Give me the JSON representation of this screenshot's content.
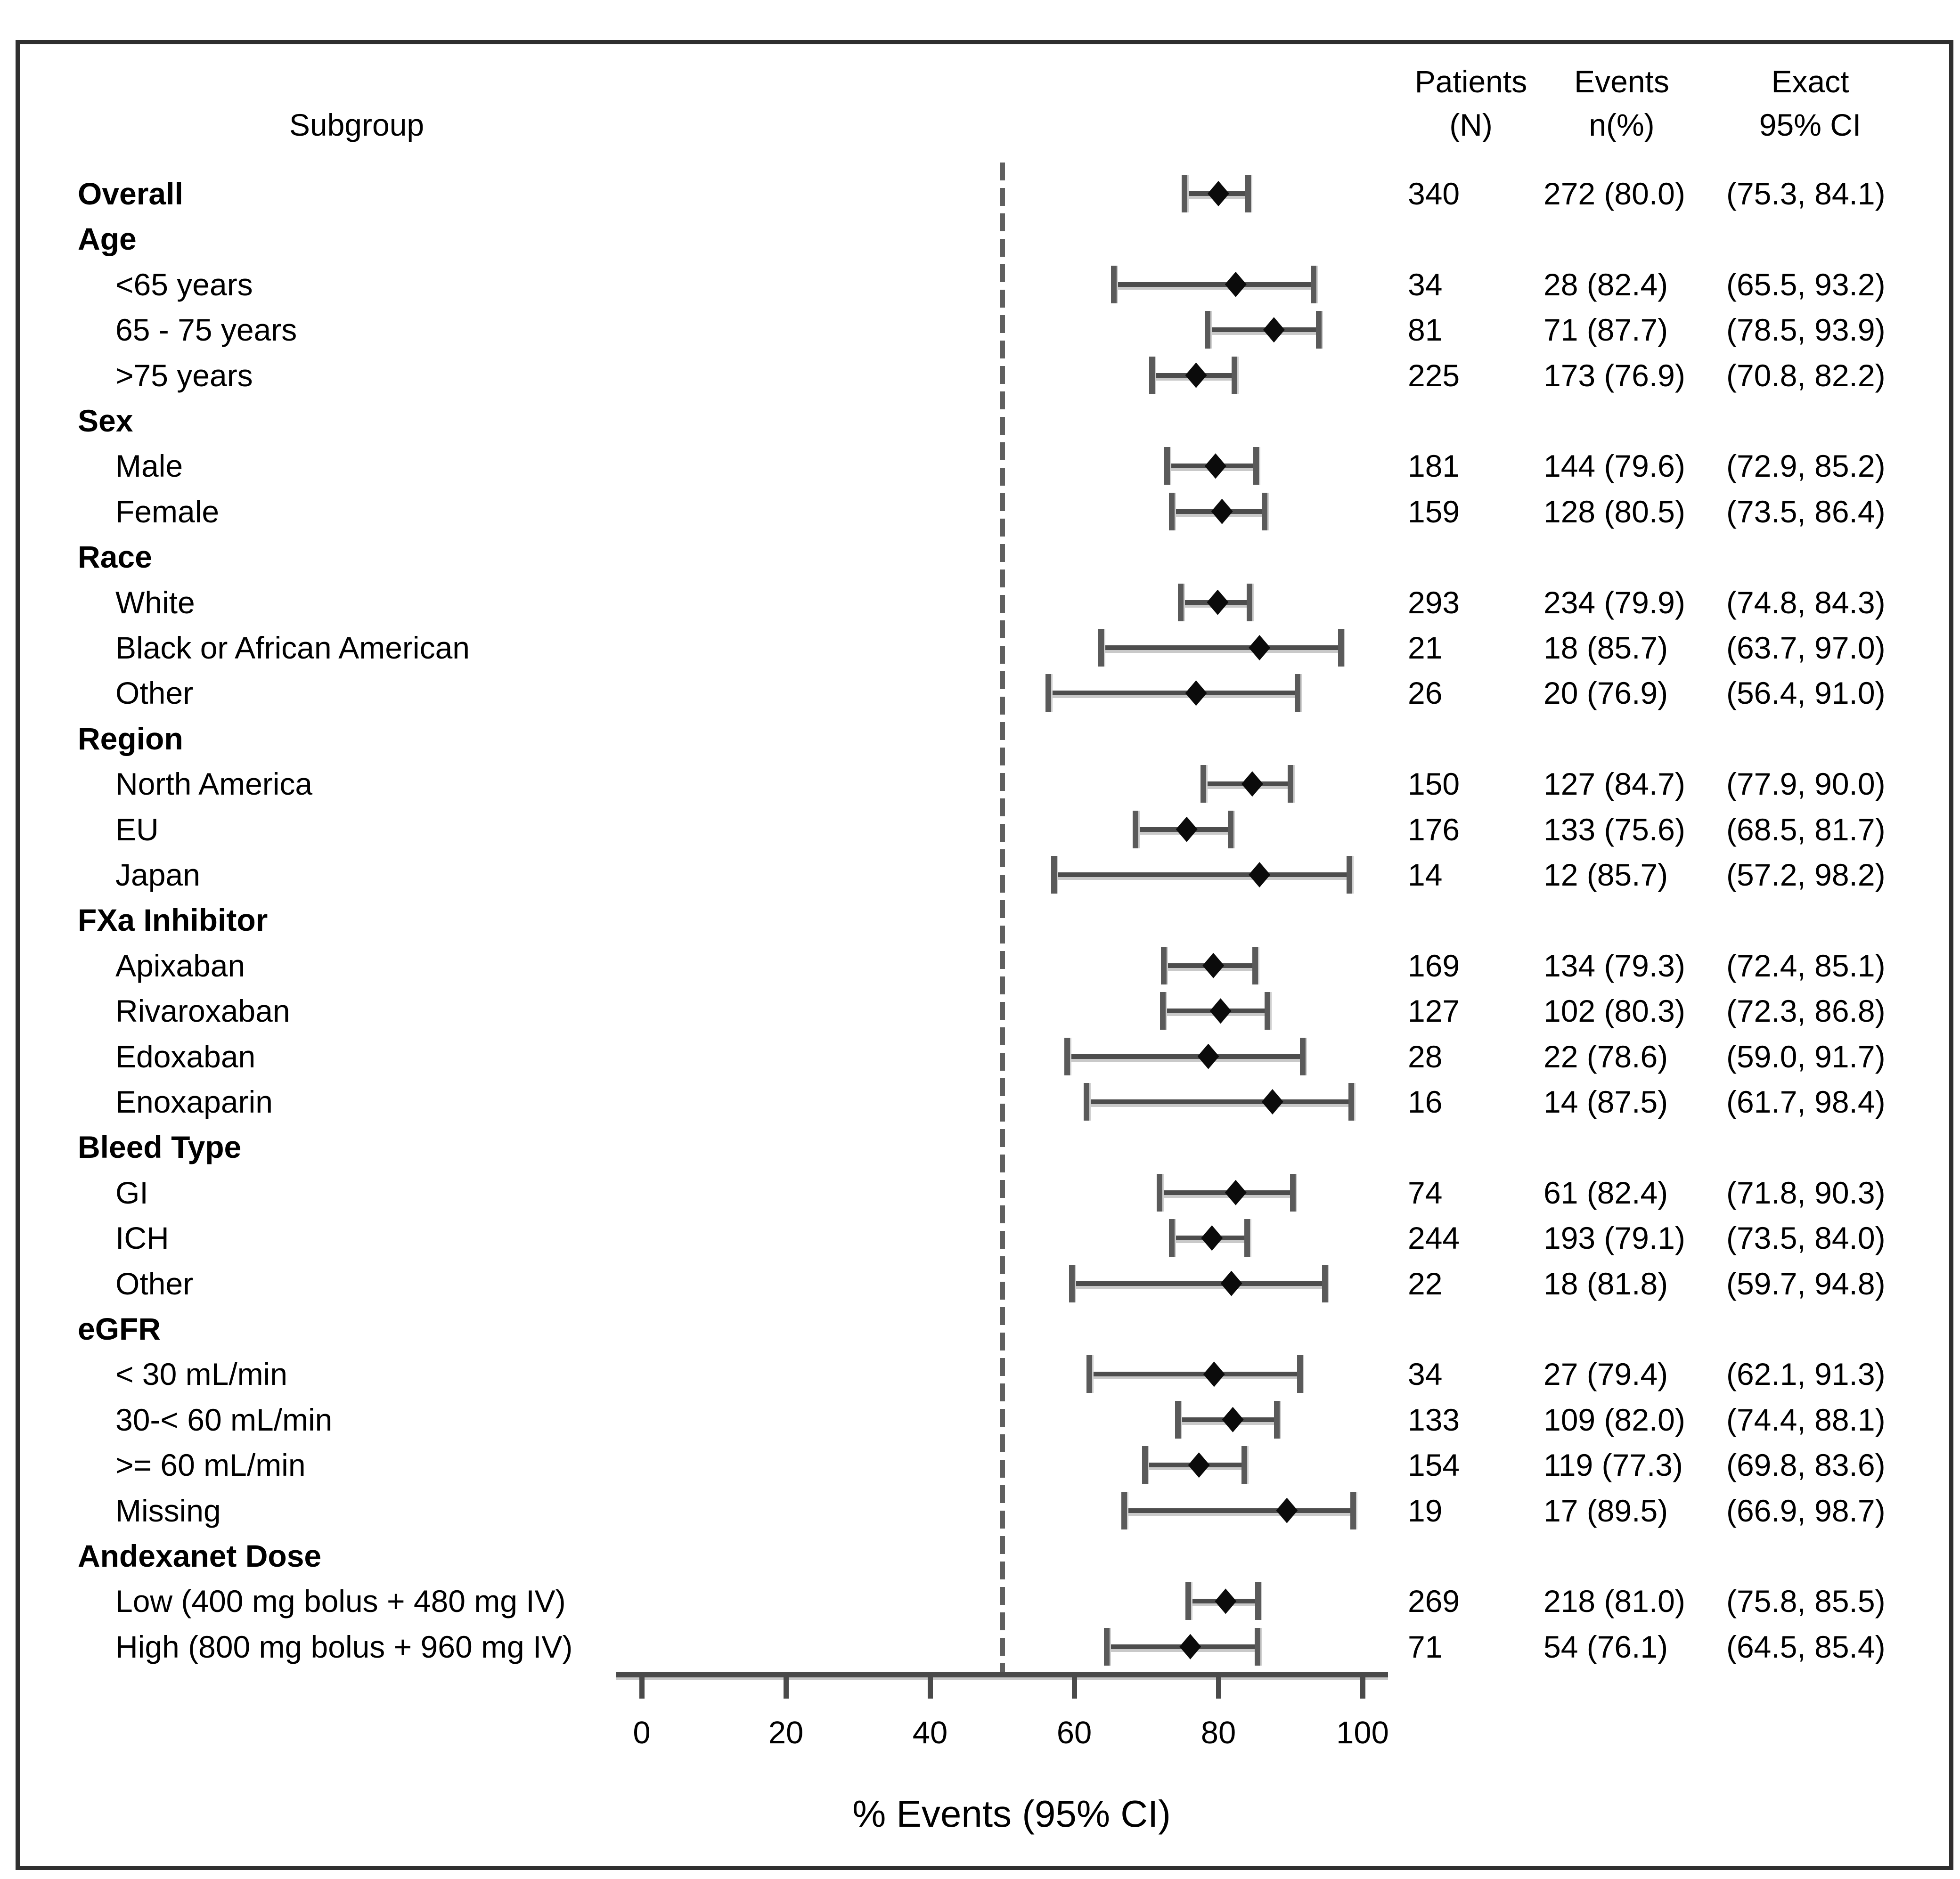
{
  "header": {
    "subgroup": "Subgroup",
    "patients": [
      "Patients",
      "(N)"
    ],
    "events": [
      "Events",
      "n(%)"
    ],
    "ci": [
      "Exact",
      "95% CI"
    ]
  },
  "colors": {
    "text": "#000000",
    "marker": "#0b0b0b",
    "line": "#4d4d4d",
    "frame": "#2f2f2f"
  },
  "chart_data": {
    "type": "forest",
    "xlabel": "% Events (95% CI)",
    "xlim": [
      0,
      100
    ],
    "xticks": [
      0,
      20,
      40,
      60,
      80,
      100
    ],
    "reference_line_x": 50,
    "legend_position": "none",
    "grid": false,
    "rows": [
      {
        "label": "Overall",
        "level": "overall",
        "patients": 340,
        "events": "272 (80.0)",
        "ci": "(75.3, 84.1)",
        "estimate": 80.0,
        "lower": 75.3,
        "upper": 84.1
      },
      {
        "label": "Age",
        "level": "group"
      },
      {
        "label": "<65 years",
        "level": "item",
        "patients": 34,
        "events": "28 (82.4)",
        "ci": "(65.5, 93.2)",
        "estimate": 82.4,
        "lower": 65.5,
        "upper": 93.2
      },
      {
        "label": "65 - 75 years",
        "level": "item",
        "patients": 81,
        "events": "71 (87.7)",
        "ci": "(78.5, 93.9)",
        "estimate": 87.7,
        "lower": 78.5,
        "upper": 93.9
      },
      {
        "label": ">75 years",
        "level": "item",
        "patients": 225,
        "events": "173 (76.9)",
        "ci": "(70.8, 82.2)",
        "estimate": 76.9,
        "lower": 70.8,
        "upper": 82.2
      },
      {
        "label": "Sex",
        "level": "group"
      },
      {
        "label": "Male",
        "level": "item",
        "patients": 181,
        "events": "144 (79.6)",
        "ci": "(72.9, 85.2)",
        "estimate": 79.6,
        "lower": 72.9,
        "upper": 85.2
      },
      {
        "label": "Female",
        "level": "item",
        "patients": 159,
        "events": "128 (80.5)",
        "ci": "(73.5, 86.4)",
        "estimate": 80.5,
        "lower": 73.5,
        "upper": 86.4
      },
      {
        "label": "Race",
        "level": "group"
      },
      {
        "label": "White",
        "level": "item",
        "patients": 293,
        "events": "234 (79.9)",
        "ci": "(74.8, 84.3)",
        "estimate": 79.9,
        "lower": 74.8,
        "upper": 84.3
      },
      {
        "label": "Black or African American",
        "level": "item",
        "patients": 21,
        "events": "18 (85.7)",
        "ci": "(63.7, 97.0)",
        "estimate": 85.7,
        "lower": 63.7,
        "upper": 97.0
      },
      {
        "label": "Other",
        "level": "item",
        "patients": 26,
        "events": "20 (76.9)",
        "ci": "(56.4, 91.0)",
        "estimate": 76.9,
        "lower": 56.4,
        "upper": 91.0
      },
      {
        "label": "Region",
        "level": "group"
      },
      {
        "label": "North America",
        "level": "item",
        "patients": 150,
        "events": "127 (84.7)",
        "ci": "(77.9, 90.0)",
        "estimate": 84.7,
        "lower": 77.9,
        "upper": 90.0
      },
      {
        "label": "EU",
        "level": "item",
        "patients": 176,
        "events": "133 (75.6)",
        "ci": "(68.5, 81.7)",
        "estimate": 75.6,
        "lower": 68.5,
        "upper": 81.7
      },
      {
        "label": "Japan",
        "level": "item",
        "patients": 14,
        "events": "12 (85.7)",
        "ci": "(57.2, 98.2)",
        "estimate": 85.7,
        "lower": 57.2,
        "upper": 98.2
      },
      {
        "label": "FXa Inhibitor",
        "level": "group"
      },
      {
        "label": "Apixaban",
        "level": "item",
        "patients": 169,
        "events": "134 (79.3)",
        "ci": "(72.4, 85.1)",
        "estimate": 79.3,
        "lower": 72.4,
        "upper": 85.1
      },
      {
        "label": "Rivaroxaban",
        "level": "item",
        "patients": 127,
        "events": "102 (80.3)",
        "ci": "(72.3, 86.8)",
        "estimate": 80.3,
        "lower": 72.3,
        "upper": 86.8
      },
      {
        "label": "Edoxaban",
        "level": "item",
        "patients": 28,
        "events": "22 (78.6)",
        "ci": "(59.0, 91.7)",
        "estimate": 78.6,
        "lower": 59.0,
        "upper": 91.7
      },
      {
        "label": "Enoxaparin",
        "level": "item",
        "patients": 16,
        "events": "14 (87.5)",
        "ci": "(61.7, 98.4)",
        "estimate": 87.5,
        "lower": 61.7,
        "upper": 98.4
      },
      {
        "label": "Bleed Type",
        "level": "group"
      },
      {
        "label": "GI",
        "level": "item",
        "patients": 74,
        "events": "61 (82.4)",
        "ci": "(71.8, 90.3)",
        "estimate": 82.4,
        "lower": 71.8,
        "upper": 90.3
      },
      {
        "label": "ICH",
        "level": "item",
        "patients": 244,
        "events": "193 (79.1)",
        "ci": "(73.5, 84.0)",
        "estimate": 79.1,
        "lower": 73.5,
        "upper": 84.0
      },
      {
        "label": "Other",
        "level": "item",
        "patients": 22,
        "events": "18 (81.8)",
        "ci": "(59.7, 94.8)",
        "estimate": 81.8,
        "lower": 59.7,
        "upper": 94.8
      },
      {
        "label": "eGFR",
        "level": "group"
      },
      {
        "label": "< 30 mL/min",
        "level": "item",
        "patients": 34,
        "events": "27 (79.4)",
        "ci": "(62.1, 91.3)",
        "estimate": 79.4,
        "lower": 62.1,
        "upper": 91.3
      },
      {
        "label": "30-< 60 mL/min",
        "level": "item",
        "patients": 133,
        "events": "109 (82.0)",
        "ci": "(74.4, 88.1)",
        "estimate": 82.0,
        "lower": 74.4,
        "upper": 88.1
      },
      {
        "label": ">= 60 mL/min",
        "level": "item",
        "patients": 154,
        "events": "119 (77.3)",
        "ci": "(69.8, 83.6)",
        "estimate": 77.3,
        "lower": 69.8,
        "upper": 83.6
      },
      {
        "label": "Missing",
        "level": "item",
        "patients": 19,
        "events": "17 (89.5)",
        "ci": "(66.9, 98.7)",
        "estimate": 89.5,
        "lower": 66.9,
        "upper": 98.7
      },
      {
        "label": "Andexanet Dose",
        "level": "group"
      },
      {
        "label": "Low (400 mg bolus + 480 mg IV)",
        "level": "item",
        "patients": 269,
        "events": "218 (81.0)",
        "ci": "(75.8, 85.5)",
        "estimate": 81.0,
        "lower": 75.8,
        "upper": 85.5
      },
      {
        "label": "High (800 mg bolus + 960 mg IV)",
        "level": "item",
        "patients": 71,
        "events": "54 (76.1)",
        "ci": "(64.5, 85.4)",
        "estimate": 76.1,
        "lower": 64.5,
        "upper": 85.4
      }
    ]
  }
}
